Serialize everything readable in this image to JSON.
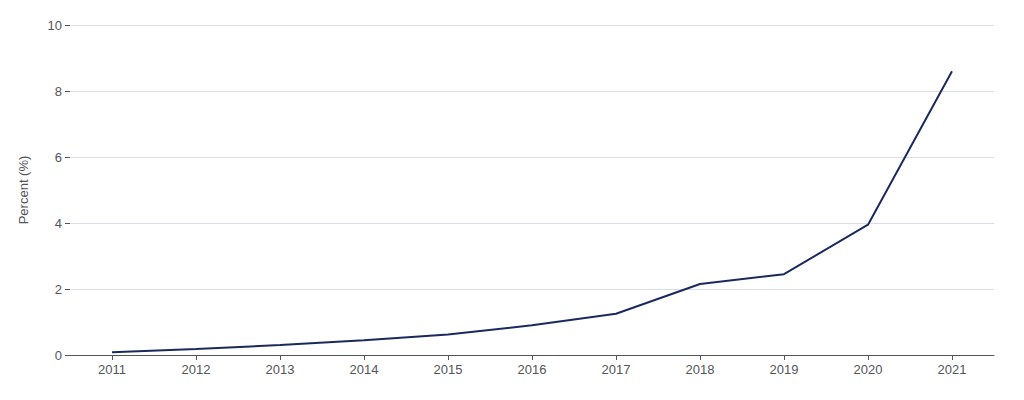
{
  "chart_data": {
    "type": "line",
    "x": [
      2011,
      2012,
      2013,
      2014,
      2015,
      2016,
      2017,
      2018,
      2019,
      2020,
      2021
    ],
    "values": [
      0.08,
      0.18,
      0.3,
      0.45,
      0.62,
      0.9,
      1.25,
      2.15,
      2.45,
      3.95,
      8.6
    ],
    "color": "#1b2a5e",
    "ylabel": "Percent (%)",
    "xlim": [
      2010.5,
      2021.5
    ],
    "ylim": [
      0,
      10
    ],
    "xticks": [
      2011,
      2012,
      2013,
      2014,
      2015,
      2016,
      2017,
      2018,
      2019,
      2020,
      2021
    ],
    "yticks": [
      0,
      2,
      4,
      6,
      8,
      10
    ],
    "grid": true
  }
}
